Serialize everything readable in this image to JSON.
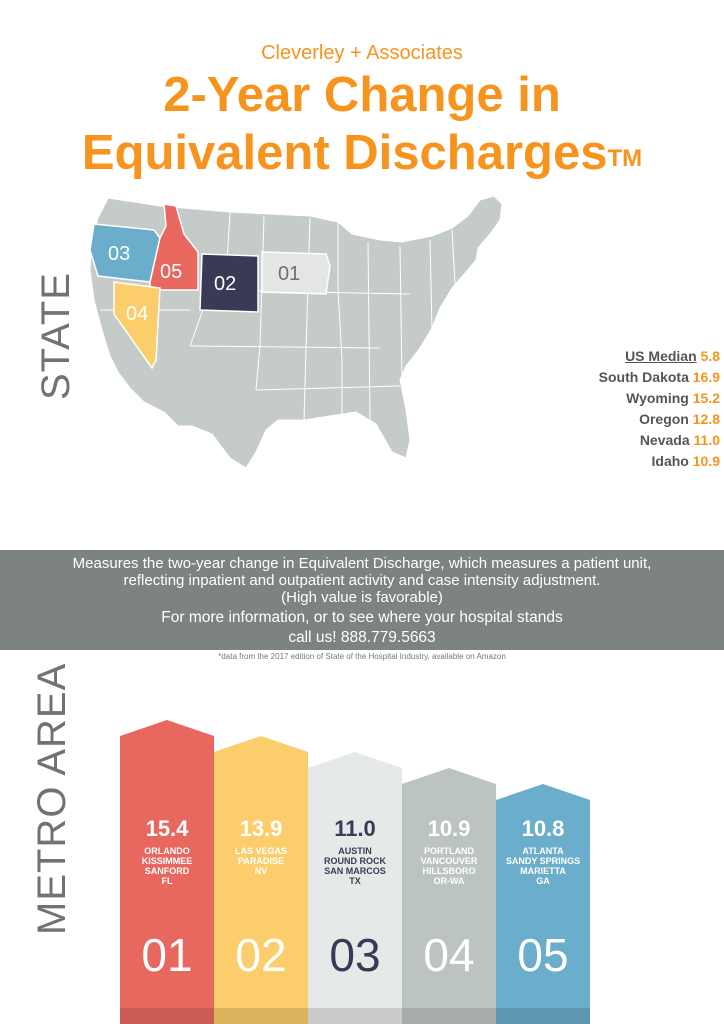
{
  "header": {
    "brand": "Cleverley + Associates",
    "title_line1": "2-Year Change in",
    "title_line2": "Equivalent Discharges",
    "trademark": "TM"
  },
  "state_section": {
    "label": "STATE",
    "map_labels": [
      {
        "id": "03",
        "state": "Oregon",
        "color": "#6aaecb"
      },
      {
        "id": "05",
        "state": "Idaho",
        "color": "#e8685f"
      },
      {
        "id": "02",
        "state": "Wyoming",
        "color": "#3a3956"
      },
      {
        "id": "01",
        "state": "South Dakota",
        "color": "#e4e6e5"
      },
      {
        "id": "04",
        "state": "Nevada",
        "color": "#fbcd6b"
      }
    ],
    "legend": {
      "median_label": "US Median",
      "median_value": "5.8",
      "rows": [
        {
          "name": "South Dakota",
          "value": "16.9"
        },
        {
          "name": "Wyoming",
          "value": "15.2"
        },
        {
          "name": "Oregon",
          "value": "12.8"
        },
        {
          "name": "Nevada",
          "value": "11.0"
        },
        {
          "name": "Idaho",
          "value": "10.9"
        }
      ]
    }
  },
  "info_band": {
    "line1": "Measures the two-year change in Equivalent Discharge, which measures a patient unit,",
    "line2": "reflecting inpatient and outpatient activity and case intensity adjustment.",
    "line3": "(High value is favorable)",
    "line4": "For more information, or to see where your hospital stands",
    "line5": "call us! 888.779.5663"
  },
  "footnote": "*data from the 2017 edition of State of the Hospital Industry, available on Amazon",
  "metro_section": {
    "label": "METRO AREA",
    "items": [
      {
        "rank": "01",
        "value": "15.4",
        "lines": [
          "ORLANDO",
          "KISSIMMEE",
          "SANFORD",
          "FL"
        ],
        "color": "#e8685f",
        "text_color": "#ffffff"
      },
      {
        "rank": "02",
        "value": "13.9",
        "lines": [
          "LAS VEGAS",
          "PARADISE",
          "NV"
        ],
        "color": "#fbcd6b",
        "text_color": "#ffffff"
      },
      {
        "rank": "03",
        "value": "11.0",
        "lines": [
          "AUSTIN",
          "ROUND ROCK",
          "SAN MARCOS",
          "TX"
        ],
        "color": "#e5e9e8",
        "text_color": "#3a3956"
      },
      {
        "rank": "04",
        "value": "10.9",
        "lines": [
          "PORTLAND",
          "VANCOUVER",
          "HILLSBORO",
          "OR-WA"
        ],
        "color": "#bcc4c2",
        "text_color": "#ffffff"
      },
      {
        "rank": "05",
        "value": "10.8",
        "lines": [
          "ATLANTA",
          "SANDY SPRINGS",
          "MARIETTA",
          "GA"
        ],
        "color": "#6aaecb",
        "text_color": "#ffffff"
      }
    ]
  }
}
